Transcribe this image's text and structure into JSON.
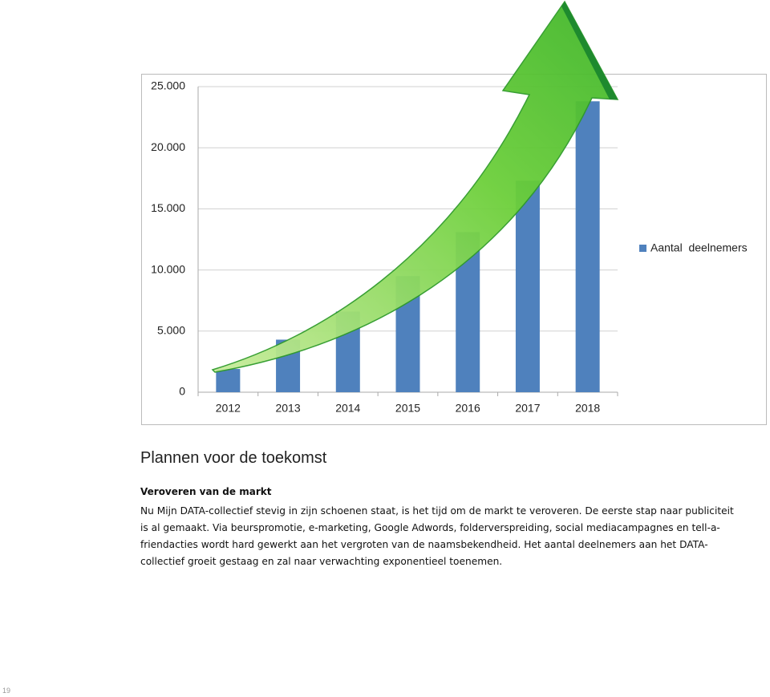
{
  "chart_data": {
    "type": "bar",
    "categories": [
      "2012",
      "2013",
      "2014",
      "2015",
      "2016",
      "2017",
      "2018"
    ],
    "series": [
      {
        "name": "Aantal  deelnemers",
        "color": "#4f81bd",
        "values": [
          1900,
          4300,
          6600,
          9500,
          13100,
          17300,
          23800
        ]
      }
    ],
    "ylim": [
      0,
      25000
    ],
    "yticks": [
      0,
      {
        "value": 5000,
        "label": "5.000"
      },
      {
        "value": 10000,
        "label": "10.000"
      },
      {
        "value": 15000,
        "label": "15.000"
      },
      {
        "value": 20000,
        "label": "20.000"
      },
      {
        "value": 25000,
        "label": "25.000"
      }
    ],
    "grid": true,
    "legend": "right"
  },
  "document": {
    "heading": "Plannen voor  de toekomst",
    "subheading": "Veroveren van de  markt",
    "paragraph": [
      "Nu Mijn DATA-collectief stevig  in zijn schoenen staat, is het  tijd om  de  markt te  veroveren. De eerste  stap naar publiciteit",
      "is al gemaakt. Via beurspromotie, e-marketing, Google Adwords,  folderverspreiding, social mediacampagnes en tell-a-",
      "friendacties wordt  hard  gewerkt aan  het  vergroten van de  naamsbekendheid. Het aantal  deelnemers aan het DATA-",
      "collectief groeit  gestaag en zal naar  verwachting exponentieel toenemen."
    ],
    "page_number": "19"
  }
}
